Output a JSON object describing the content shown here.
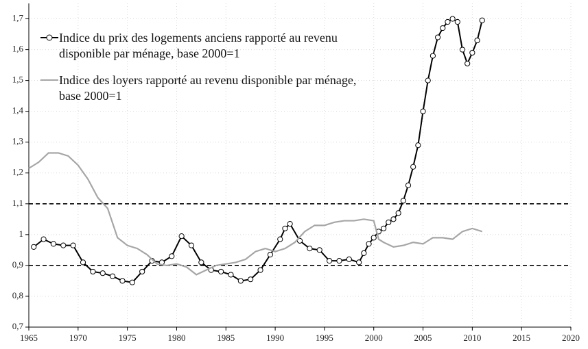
{
  "chart_data": {
    "type": "line",
    "xlim": [
      1965,
      2020
    ],
    "xticks": [
      1965,
      1970,
      1975,
      1980,
      1985,
      1990,
      1995,
      2000,
      2005,
      2010,
      2015,
      2020
    ],
    "ylim": [
      0.7,
      1.75
    ],
    "yticks": [
      {
        "value": 0.7,
        "label": "0,7"
      },
      {
        "value": 0.8,
        "label": "0,8"
      },
      {
        "value": 0.9,
        "label": "0,9"
      },
      {
        "value": 1,
        "label": "1"
      },
      {
        "value": 1.1,
        "label": "1,1"
      },
      {
        "value": 1.2,
        "label": "1,2"
      },
      {
        "value": 1.3,
        "label": "1,3"
      },
      {
        "value": 1.4,
        "label": "1,4"
      },
      {
        "value": 1.5,
        "label": "1,5"
      },
      {
        "value": 1.6,
        "label": "1,6"
      },
      {
        "value": 1.7,
        "label": "1,7"
      }
    ],
    "grid": true,
    "legend": "top-left",
    "reference_lines": [
      1.1,
      0.9
    ],
    "series": [
      {
        "name": "Indice du prix des logements anciens rapporté au revenu disponible par ménage, base 2000=1",
        "color": "#000000",
        "markers": true,
        "x": [
          1965.5,
          1966.5,
          1967.5,
          1968.5,
          1969.5,
          1970.5,
          1971.5,
          1972.5,
          1973.5,
          1974.5,
          1975.5,
          1976.5,
          1977.5,
          1978.5,
          1979.5,
          1980.5,
          1981.5,
          1982.5,
          1983.5,
          1984.5,
          1985.5,
          1986.5,
          1987.5,
          1988.5,
          1989.5,
          1990.5,
          1991,
          1991.5,
          1992.5,
          1993.5,
          1994.5,
          1995.5,
          1996.5,
          1997.5,
          1998.5,
          1999,
          1999.5,
          2000,
          2000.5,
          2001,
          2001.5,
          2002,
          2002.5,
          2003,
          2003.5,
          2004,
          2004.5,
          2005,
          2005.5,
          2006,
          2006.5,
          2007,
          2007.5,
          2008,
          2008.5,
          2009,
          2009.5,
          2010,
          2010.5,
          2011
        ],
        "values": [
          0.96,
          0.985,
          0.97,
          0.965,
          0.965,
          0.91,
          0.88,
          0.875,
          0.865,
          0.85,
          0.845,
          0.88,
          0.915,
          0.91,
          0.93,
          0.995,
          0.965,
          0.91,
          0.885,
          0.88,
          0.87,
          0.85,
          0.855,
          0.885,
          0.935,
          0.985,
          1.02,
          1.035,
          0.98,
          0.955,
          0.95,
          0.915,
          0.915,
          0.92,
          0.91,
          0.94,
          0.97,
          0.99,
          1.01,
          1.02,
          1.04,
          1.05,
          1.07,
          1.11,
          1.16,
          1.22,
          1.29,
          1.4,
          1.5,
          1.58,
          1.64,
          1.67,
          1.69,
          1.7,
          1.69,
          1.6,
          1.555,
          1.59,
          1.63,
          1.695
        ]
      },
      {
        "name": "Indice des loyers rapporté au revenu disponible par ménage, base 2000=1",
        "color": "#a6a6a6",
        "markers": false,
        "x": [
          1965,
          1966,
          1967,
          1968,
          1969,
          1970,
          1971,
          1972,
          1973,
          1974,
          1975,
          1976,
          1977,
          1978,
          1979,
          1980,
          1981,
          1982,
          1983,
          1984,
          1985,
          1986,
          1987,
          1988,
          1989,
          1990,
          1991,
          1992,
          1993,
          1994,
          1995,
          1996,
          1997,
          1998,
          1999,
          2000,
          2000.5,
          2001,
          2002,
          2003,
          2004,
          2005,
          2006,
          2007,
          2008,
          2009,
          2010,
          2011
        ],
        "values": [
          1.215,
          1.235,
          1.265,
          1.265,
          1.255,
          1.225,
          1.18,
          1.12,
          1.085,
          0.99,
          0.965,
          0.955,
          0.935,
          0.905,
          0.9,
          0.905,
          0.895,
          0.87,
          0.885,
          0.9,
          0.905,
          0.91,
          0.92,
          0.945,
          0.955,
          0.945,
          0.955,
          0.975,
          1.01,
          1.03,
          1.03,
          1.04,
          1.045,
          1.045,
          1.05,
          1.045,
          0.985,
          0.975,
          0.96,
          0.965,
          0.975,
          0.97,
          0.99,
          0.99,
          0.985,
          1.01,
          1.02,
          1.01
        ]
      }
    ]
  }
}
